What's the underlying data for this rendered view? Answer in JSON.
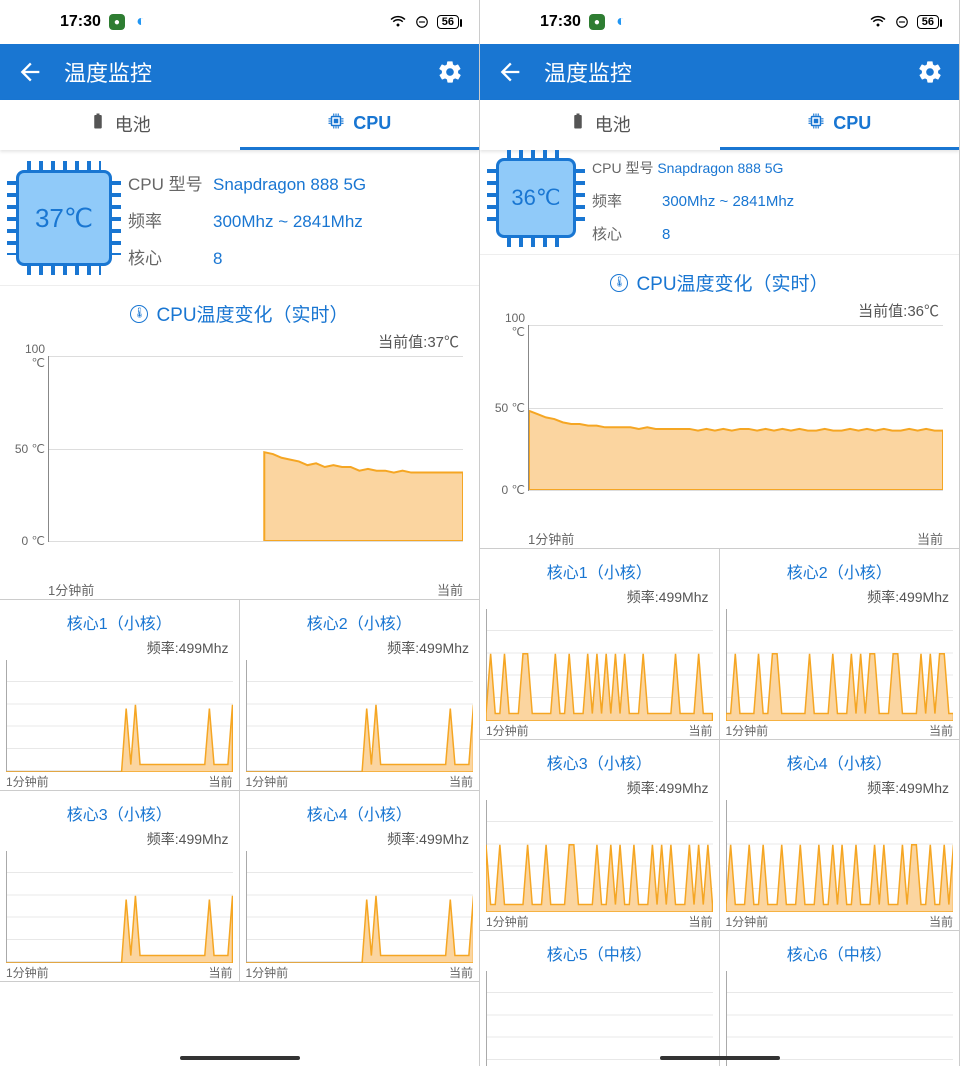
{
  "colors": {
    "accent": "#1976d2",
    "chip_fill": "#90caf9",
    "chart_stroke": "#f5a623",
    "chart_fill": "#fbd5a0",
    "grid": "#dddddd",
    "bg": "#ffffff"
  },
  "status": {
    "time": "17:30",
    "battery": "56"
  },
  "appbar": {
    "title": "温度监控"
  },
  "tabs": {
    "battery": "电池",
    "cpu": "CPU"
  },
  "labels": {
    "model": "CPU 型号",
    "freq": "频率",
    "cores": "核心",
    "section_title": "CPU温度变化（实时）",
    "current_prefix": "当前值:",
    "xmin": "1分钟前",
    "xmax": "当前",
    "freq_prefix": "频率:"
  },
  "temp_chart_spec": {
    "type": "area",
    "ylim": [
      0,
      100
    ],
    "yticks": [
      0,
      50,
      100
    ],
    "ytick_unit": "℃",
    "grid_color": "#dddddd",
    "line_color": "#f5a623",
    "fill_color": "#fbd5a0",
    "line_width": 2
  },
  "core_chart_spec": {
    "type": "area",
    "ylim": [
      0,
      3000
    ],
    "line_color": "#f5a623",
    "fill_color": "#fbd5a0",
    "line_width": 1.5,
    "grid_rows": 5
  },
  "left": {
    "temp": "37℃",
    "model": "Snapdragon 888 5G",
    "freq_range": "300Mhz ~ 2841Mhz",
    "cores": "8",
    "current_val": "37℃",
    "temp_series": {
      "start_x": 0.52,
      "data": [
        48,
        47,
        45,
        44,
        43,
        41,
        42,
        40,
        41,
        40,
        40,
        38,
        39,
        38,
        38,
        37,
        38,
        37,
        37,
        37,
        37,
        37,
        37,
        37
      ]
    },
    "cores_grid": [
      {
        "title": "核心1（小核）",
        "freq": "499Mhz",
        "data": [
          0,
          0,
          0,
          0,
          0,
          0,
          0,
          0,
          0,
          0,
          0,
          0,
          0,
          0,
          0,
          0,
          0,
          0,
          0,
          0,
          0,
          0,
          0,
          0,
          0,
          0,
          1700,
          200,
          1800,
          200,
          200,
          200,
          200,
          200,
          200,
          200,
          200,
          200,
          200,
          200,
          200,
          200,
          200,
          200,
          1700,
          200,
          200,
          200,
          200,
          1800
        ]
      },
      {
        "title": "核心2（小核）",
        "freq": "499Mhz",
        "data": [
          0,
          0,
          0,
          0,
          0,
          0,
          0,
          0,
          0,
          0,
          0,
          0,
          0,
          0,
          0,
          0,
          0,
          0,
          0,
          0,
          0,
          0,
          0,
          0,
          0,
          0,
          1700,
          200,
          1800,
          200,
          200,
          200,
          200,
          200,
          200,
          200,
          200,
          200,
          200,
          200,
          200,
          200,
          200,
          200,
          1700,
          200,
          200,
          200,
          200,
          1800
        ]
      },
      {
        "title": "核心3（小核）",
        "freq": "499Mhz",
        "data": [
          0,
          0,
          0,
          0,
          0,
          0,
          0,
          0,
          0,
          0,
          0,
          0,
          0,
          0,
          0,
          0,
          0,
          0,
          0,
          0,
          0,
          0,
          0,
          0,
          0,
          0,
          1700,
          200,
          1800,
          200,
          200,
          200,
          200,
          200,
          200,
          200,
          200,
          200,
          200,
          200,
          200,
          200,
          200,
          200,
          1700,
          200,
          200,
          200,
          200,
          1800
        ]
      },
      {
        "title": "核心4（小核）",
        "freq": "499Mhz",
        "data": [
          0,
          0,
          0,
          0,
          0,
          0,
          0,
          0,
          0,
          0,
          0,
          0,
          0,
          0,
          0,
          0,
          0,
          0,
          0,
          0,
          0,
          0,
          0,
          0,
          0,
          0,
          1700,
          200,
          1800,
          200,
          200,
          200,
          200,
          200,
          200,
          200,
          200,
          200,
          200,
          200,
          200,
          200,
          200,
          200,
          1700,
          200,
          200,
          200,
          200,
          1800
        ]
      }
    ]
  },
  "right": {
    "temp": "36℃",
    "overline_label": "CPU 型号",
    "overline_val": "Snapdragon 888 5G",
    "freq_range": "300Mhz ~ 2841Mhz",
    "cores": "8",
    "current_val": "36℃",
    "temp_series": {
      "start_x": 0.0,
      "data": [
        48,
        46,
        44,
        43,
        41,
        40,
        40,
        39,
        39,
        38,
        38,
        38,
        38,
        37,
        38,
        37,
        37,
        37,
        37,
        37,
        36,
        37,
        36,
        37,
        36,
        37,
        37,
        36,
        37,
        36,
        37,
        36,
        37,
        36,
        36,
        37,
        36,
        36,
        37,
        36,
        37,
        36,
        37,
        36,
        36,
        37,
        36,
        37,
        36,
        36
      ]
    },
    "cores_grid": [
      {
        "title": "核心1（小核）",
        "freq": "499Mhz",
        "data": [
          200,
          1800,
          200,
          200,
          1800,
          200,
          200,
          200,
          1800,
          1800,
          200,
          200,
          200,
          200,
          200,
          1800,
          200,
          200,
          1800,
          200,
          200,
          200,
          1800,
          200,
          1800,
          200,
          1800,
          200,
          1800,
          200,
          1800,
          200,
          200,
          200,
          1800,
          200,
          200,
          200,
          200,
          200,
          200,
          1800,
          200,
          200,
          200,
          200,
          1800,
          200,
          200,
          200
        ]
      },
      {
        "title": "核心2（小核）",
        "freq": "499Mhz",
        "data": [
          200,
          200,
          1800,
          200,
          200,
          200,
          200,
          1800,
          200,
          200,
          1800,
          1800,
          200,
          200,
          200,
          200,
          200,
          200,
          1800,
          200,
          200,
          200,
          200,
          1800,
          200,
          200,
          200,
          1800,
          200,
          1800,
          200,
          1800,
          1800,
          200,
          200,
          200,
          1800,
          1800,
          200,
          200,
          200,
          200,
          1800,
          200,
          1800,
          200,
          1800,
          1800,
          200,
          200
        ]
      },
      {
        "title": "核心3（小核）",
        "freq": "499Mhz",
        "data": [
          1800,
          200,
          200,
          1800,
          200,
          200,
          200,
          200,
          200,
          1800,
          200,
          200,
          200,
          1800,
          200,
          200,
          200,
          200,
          1800,
          1800,
          200,
          200,
          200,
          200,
          1800,
          200,
          200,
          1800,
          200,
          1800,
          200,
          200,
          1800,
          200,
          200,
          200,
          1800,
          200,
          1800,
          200,
          1800,
          200,
          200,
          200,
          1800,
          200,
          1800,
          200,
          1800,
          200
        ]
      },
      {
        "title": "核心4（小核）",
        "freq": "499Mhz",
        "data": [
          200,
          1800,
          200,
          200,
          200,
          1800,
          200,
          200,
          1800,
          200,
          200,
          200,
          1800,
          200,
          200,
          200,
          1800,
          200,
          200,
          200,
          1800,
          200,
          200,
          1800,
          200,
          1800,
          200,
          200,
          1800,
          200,
          200,
          200,
          1800,
          200,
          1800,
          200,
          200,
          200,
          1800,
          200,
          1800,
          1800,
          200,
          200,
          1800,
          200,
          200,
          1800,
          200,
          1800
        ]
      },
      {
        "title": "核心5（中核）",
        "freq": "",
        "data": []
      },
      {
        "title": "核心6（中核）",
        "freq": "",
        "data": []
      }
    ]
  }
}
